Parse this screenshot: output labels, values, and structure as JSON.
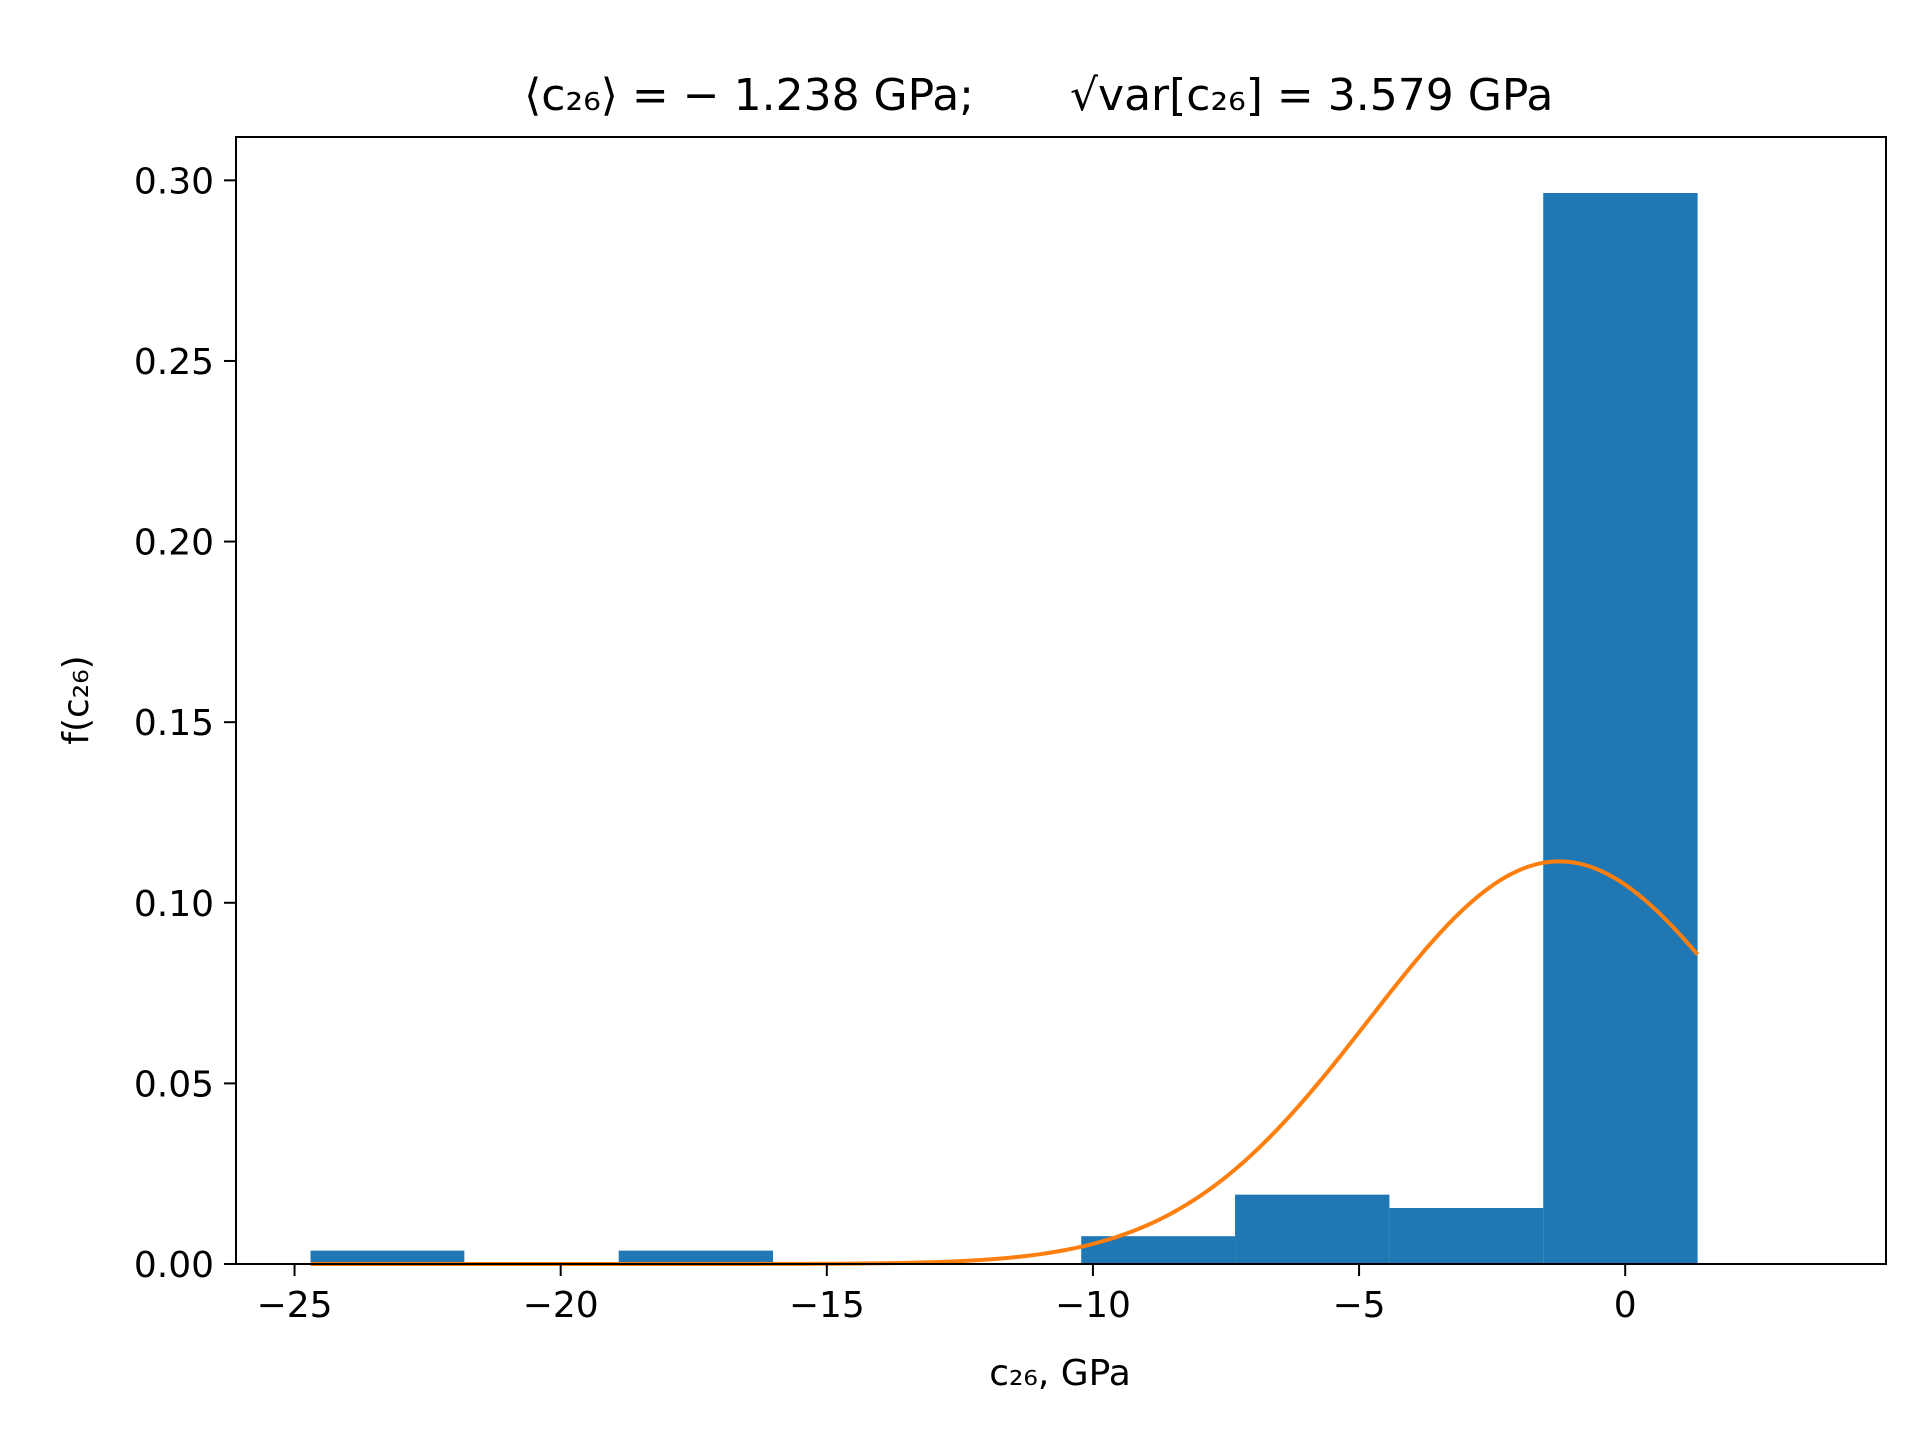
{
  "chart_data": {
    "type": "bar",
    "subtype": "histogram-with-density",
    "title": {
      "mean_label": "⟨c₂₆⟩ = − 1.238 GPa;",
      "std_label": "√var[c₂₆] = 3.579 GPa",
      "mean": -1.238,
      "std": 3.579,
      "unit": "GPa"
    },
    "xlabel": "c₂₆, GPa",
    "ylabel": "f(c₂₆)",
    "xlim": [
      -26.1,
      4.9
    ],
    "ylim": [
      0,
      0.312
    ],
    "xticks": [
      -25,
      -20,
      -15,
      -10,
      -5,
      0
    ],
    "xtick_labels": [
      "−25",
      "−20",
      "−15",
      "−10",
      "−5",
      "0"
    ],
    "yticks": [
      0.0,
      0.05,
      0.1,
      0.15,
      0.2,
      0.25,
      0.3
    ],
    "ytick_labels": [
      "0.00",
      "0.05",
      "0.10",
      "0.15",
      "0.20",
      "0.25",
      "0.30"
    ],
    "grid": false,
    "legend": "none",
    "bins": [
      {
        "x0": -24.7,
        "x1": -21.81,
        "density": 0.0037
      },
      {
        "x0": -21.81,
        "x1": -18.91,
        "density": 0.0
      },
      {
        "x0": -18.91,
        "x1": -16.01,
        "density": 0.0037
      },
      {
        "x0": -16.01,
        "x1": -13.12,
        "density": 0.0
      },
      {
        "x0": -13.12,
        "x1": -10.22,
        "density": 0.0
      },
      {
        "x0": -10.22,
        "x1": -7.33,
        "density": 0.0077
      },
      {
        "x0": -7.33,
        "x1": -4.43,
        "density": 0.0192
      },
      {
        "x0": -4.43,
        "x1": -1.54,
        "density": 0.0155
      },
      {
        "x0": -1.54,
        "x1": 1.36,
        "density": 0.2965
      }
    ],
    "series": [
      {
        "type": "bar",
        "color": "#1f77b4"
      },
      {
        "type": "line",
        "curve": "normal-pdf",
        "x_range": [
          -24.7,
          1.36
        ],
        "color": "#ff7f0e"
      }
    ],
    "axes_color": "#000000"
  }
}
